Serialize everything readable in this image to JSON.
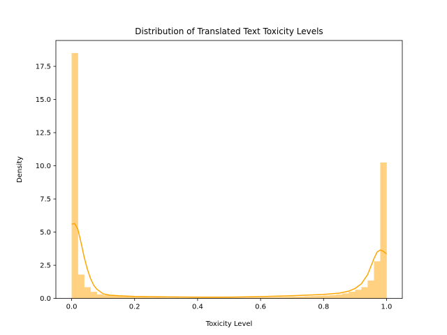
{
  "chart_data": {
    "type": "bar",
    "title": "Distribution of Translated Text Toxicity Levels",
    "xlabel": "Toxicity Level",
    "ylabel": "Density",
    "xlim": [
      -0.05,
      1.05
    ],
    "ylim": [
      0,
      19.45
    ],
    "xticks": [
      0.0,
      0.2,
      0.4,
      0.6,
      0.8,
      1.0
    ],
    "xtick_labels": [
      "0.0",
      "0.2",
      "0.4",
      "0.6",
      "0.8",
      "1.0"
    ],
    "yticks": [
      0,
      2.5,
      5,
      7.5,
      10,
      12.5,
      15,
      17.5
    ],
    "ytick_labels": [
      "0.0",
      "2.5",
      "5.0",
      "7.5",
      "10.0",
      "12.5",
      "15.0",
      "17.5"
    ],
    "grid": false,
    "colors": {
      "bar": "#ffd180",
      "kde": "#ffa500",
      "axes": "#000000"
    },
    "histogram": {
      "bin_edges": [
        0,
        0.02,
        0.04,
        0.06,
        0.08,
        0.1,
        0.12,
        0.14,
        0.16,
        0.18,
        0.2,
        0.22,
        0.24,
        0.26,
        0.28,
        0.3,
        0.32,
        0.34,
        0.36,
        0.38,
        0.4,
        0.42,
        0.44,
        0.46,
        0.48,
        0.5,
        0.52,
        0.54,
        0.56,
        0.58,
        0.6,
        0.62,
        0.64,
        0.66,
        0.68,
        0.7,
        0.72,
        0.74,
        0.76,
        0.78,
        0.8,
        0.82,
        0.84,
        0.86,
        0.88,
        0.9,
        0.92,
        0.94,
        0.96,
        0.98,
        1.0
      ],
      "density": [
        18.5,
        1.8,
        0.85,
        0.5,
        0.3,
        0.25,
        0.2,
        0.18,
        0.15,
        0.12,
        0.1,
        0.1,
        0.08,
        0.08,
        0.07,
        0.06,
        0.06,
        0.05,
        0.05,
        0.05,
        0.05,
        0.05,
        0.05,
        0.05,
        0.05,
        0.05,
        0.06,
        0.06,
        0.07,
        0.07,
        0.08,
        0.09,
        0.1,
        0.11,
        0.12,
        0.13,
        0.14,
        0.16,
        0.18,
        0.2,
        0.22,
        0.25,
        0.3,
        0.38,
        0.5,
        0.65,
        0.85,
        1.35,
        2.8,
        10.25
      ]
    },
    "kde": {
      "x": [
        0,
        0.01,
        0.02,
        0.03,
        0.04,
        0.05,
        0.06,
        0.07,
        0.08,
        0.1,
        0.12,
        0.15,
        0.2,
        0.3,
        0.4,
        0.5,
        0.6,
        0.7,
        0.8,
        0.85,
        0.88,
        0.9,
        0.92,
        0.94,
        0.95,
        0.96,
        0.97,
        0.98,
        0.99,
        1.0
      ],
      "y": [
        5.6,
        5.65,
        5.2,
        4.2,
        3.1,
        2.2,
        1.5,
        1.0,
        0.7,
        0.35,
        0.25,
        0.2,
        0.15,
        0.12,
        0.1,
        0.1,
        0.14,
        0.2,
        0.3,
        0.4,
        0.55,
        0.75,
        1.1,
        1.8,
        2.4,
        3.0,
        3.5,
        3.65,
        3.55,
        3.35
      ]
    }
  }
}
